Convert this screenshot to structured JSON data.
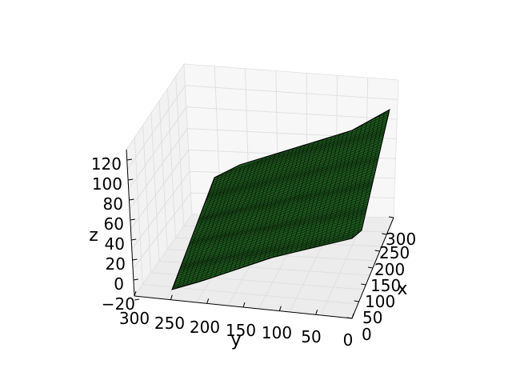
{
  "chart_data": {
    "type": "surface",
    "title": "",
    "xlabel": "x",
    "ylabel": "y",
    "zlabel": "z",
    "x_ticks": [
      "0",
      "50",
      "100",
      "150",
      "200",
      "250",
      "300"
    ],
    "y_ticks": [
      "50",
      "100",
      "150",
      "200",
      "250",
      "300"
    ],
    "y_zero_label": "0",
    "z_ticks": [
      "−20",
      "0",
      "20",
      "40",
      "60",
      "80",
      "100",
      "120"
    ],
    "xlim": [
      0,
      310
    ],
    "ylim": [
      0,
      310
    ],
    "zlim": [
      -20,
      130
    ],
    "grid": true,
    "surface_color": "#1e5a1e",
    "edge_color": "#000000",
    "pane_color": "#f2f2f2",
    "corners": [
      {
        "x": 0,
        "y": 0,
        "z": 50
      },
      {
        "x": 300,
        "y": 0,
        "z": 125
      },
      {
        "x": 300,
        "y": 300,
        "z": 80
      },
      {
        "x": 0,
        "y": 300,
        "z": 0
      }
    ]
  }
}
